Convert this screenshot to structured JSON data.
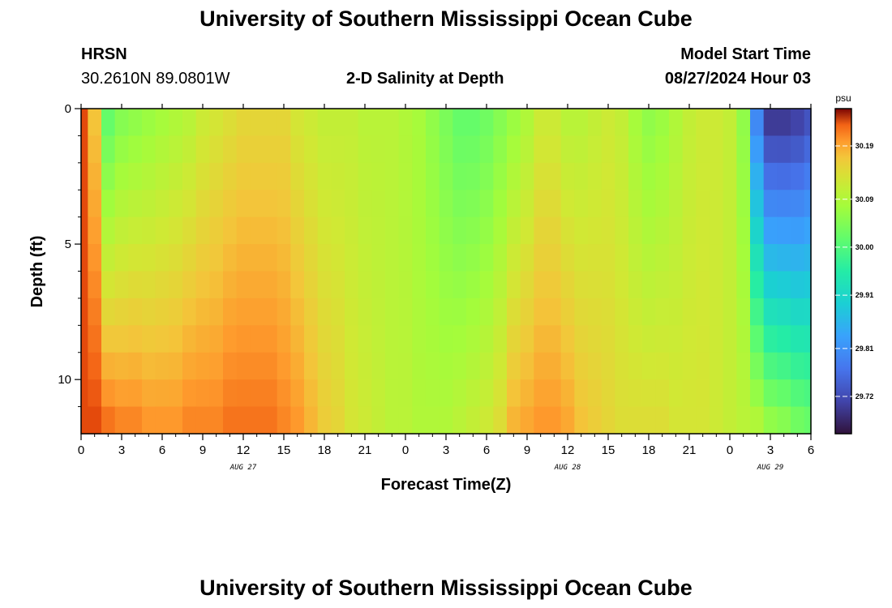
{
  "page": {
    "title_top": "University of Southern Mississippi Ocean Cube",
    "title_bottom": "University of Southern Mississippi Ocean Cube",
    "station": "HRSN",
    "coords": "30.2610N  89.0801W",
    "chart_title": "2-D Salinity at Depth",
    "model_start_label": "Model Start Time",
    "model_start_value": "08/27/2024 Hour 03"
  },
  "chart_data": {
    "type": "heatmap",
    "title": "2-D Salinity at Depth",
    "xlabel": "Forecast Time(Z)",
    "ylabel": "Depth (ft)",
    "x_range_hours": [
      0,
      54
    ],
    "y_range_ft": [
      0,
      12
    ],
    "x_ticks": [
      "0",
      "3",
      "6",
      "9",
      "12",
      "15",
      "18",
      "21",
      "0",
      "3",
      "6",
      "9",
      "12",
      "15",
      "18",
      "21",
      "0",
      "3",
      "6"
    ],
    "y_ticks": [
      "0",
      "5",
      "10"
    ],
    "date_labels": [
      {
        "label": "AUG 27",
        "hour": 12
      },
      {
        "label": "AUG 28",
        "hour": 36
      },
      {
        "label": "AUG 29",
        "hour": 51
      }
    ],
    "colorbar": {
      "unit": "psu",
      "ticks": [
        "30.19",
        "30.09",
        "30.00",
        "29.91",
        "29.81",
        "29.72"
      ],
      "tick_values": [
        30.19,
        30.09,
        30.0,
        29.91,
        29.81,
        29.72
      ],
      "vmin": 29.65,
      "vmax": 30.26
    },
    "depth_levels_ft": [
      0.5,
      1.5,
      2.5,
      3.5,
      4.5,
      5.5,
      6.5,
      7.5,
      8.5,
      9.5,
      10.5,
      11.5
    ],
    "time_hours": [
      0,
      1,
      2,
      3,
      4,
      5,
      6,
      7,
      8,
      9,
      10,
      11,
      12,
      13,
      14,
      15,
      16,
      17,
      18,
      19,
      20,
      21,
      22,
      23,
      24,
      25,
      26,
      27,
      28,
      29,
      30,
      31,
      32,
      33,
      34,
      35,
      36,
      37,
      38,
      39,
      40,
      41,
      42,
      43,
      44,
      45,
      46,
      47,
      48,
      49,
      50,
      51,
      52,
      53,
      54
    ],
    "salinity_surface": [
      30.24,
      30.17,
      30.02,
      30.05,
      30.06,
      30.07,
      30.08,
      30.09,
      30.1,
      30.12,
      30.13,
      30.14,
      30.15,
      30.15,
      30.15,
      30.15,
      30.13,
      30.12,
      30.11,
      30.11,
      30.11,
      30.1,
      30.1,
      30.1,
      30.09,
      30.08,
      30.06,
      30.04,
      30.02,
      30.02,
      30.03,
      30.05,
      30.07,
      30.09,
      30.12,
      30.12,
      30.1,
      30.1,
      30.11,
      30.12,
      30.11,
      30.08,
      30.06,
      30.07,
      30.09,
      30.11,
      30.12,
      30.12,
      30.11,
      30.06,
      29.8,
      29.7,
      29.7,
      29.71,
      29.73
    ],
    "salinity_bottom": [
      30.24,
      30.24,
      30.22,
      30.21,
      30.21,
      30.2,
      30.2,
      30.2,
      30.21,
      30.21,
      30.21,
      30.22,
      30.22,
      30.22,
      30.22,
      30.21,
      30.2,
      30.18,
      30.16,
      30.15,
      30.13,
      30.12,
      30.11,
      30.1,
      30.1,
      30.09,
      30.09,
      30.09,
      30.1,
      30.11,
      30.12,
      30.14,
      30.18,
      30.19,
      30.2,
      30.2,
      30.19,
      30.17,
      30.16,
      30.15,
      30.14,
      30.14,
      30.14,
      30.14,
      30.13,
      30.13,
      30.13,
      30.12,
      30.11,
      30.1,
      30.09,
      30.06,
      30.05,
      30.03,
      30.02
    ]
  }
}
